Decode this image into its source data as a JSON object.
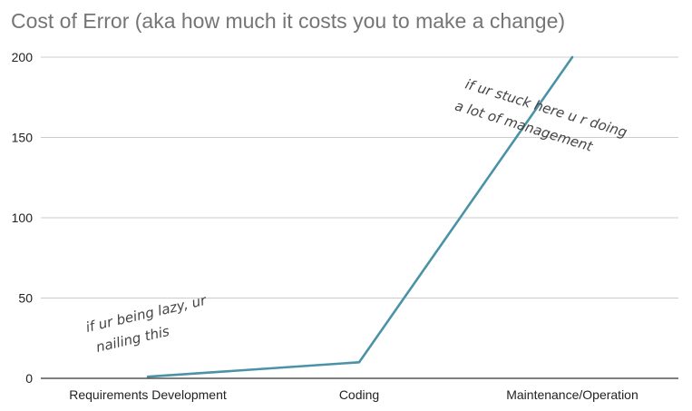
{
  "chart_data": {
    "type": "line",
    "title": "Cost of Error (aka how much it costs you to make a change)",
    "xlabel": "",
    "ylabel": "",
    "categories": [
      "Requirements Development",
      "Coding",
      "Maintenance/Operation"
    ],
    "series": [
      {
        "values": [
          1,
          10,
          200
        ],
        "color": "#4a93a6"
      }
    ],
    "ylim": [
      0,
      200
    ],
    "yticks": [
      "0",
      "50",
      "100",
      "150",
      "200"
    ],
    "grid": true,
    "legend": "none",
    "annotations": [
      {
        "lines": [
          "if ur being lazy, ur",
          "nailing this"
        ]
      },
      {
        "lines": [
          "if ur stuck here u r doing",
          "a lot of management"
        ]
      }
    ]
  }
}
